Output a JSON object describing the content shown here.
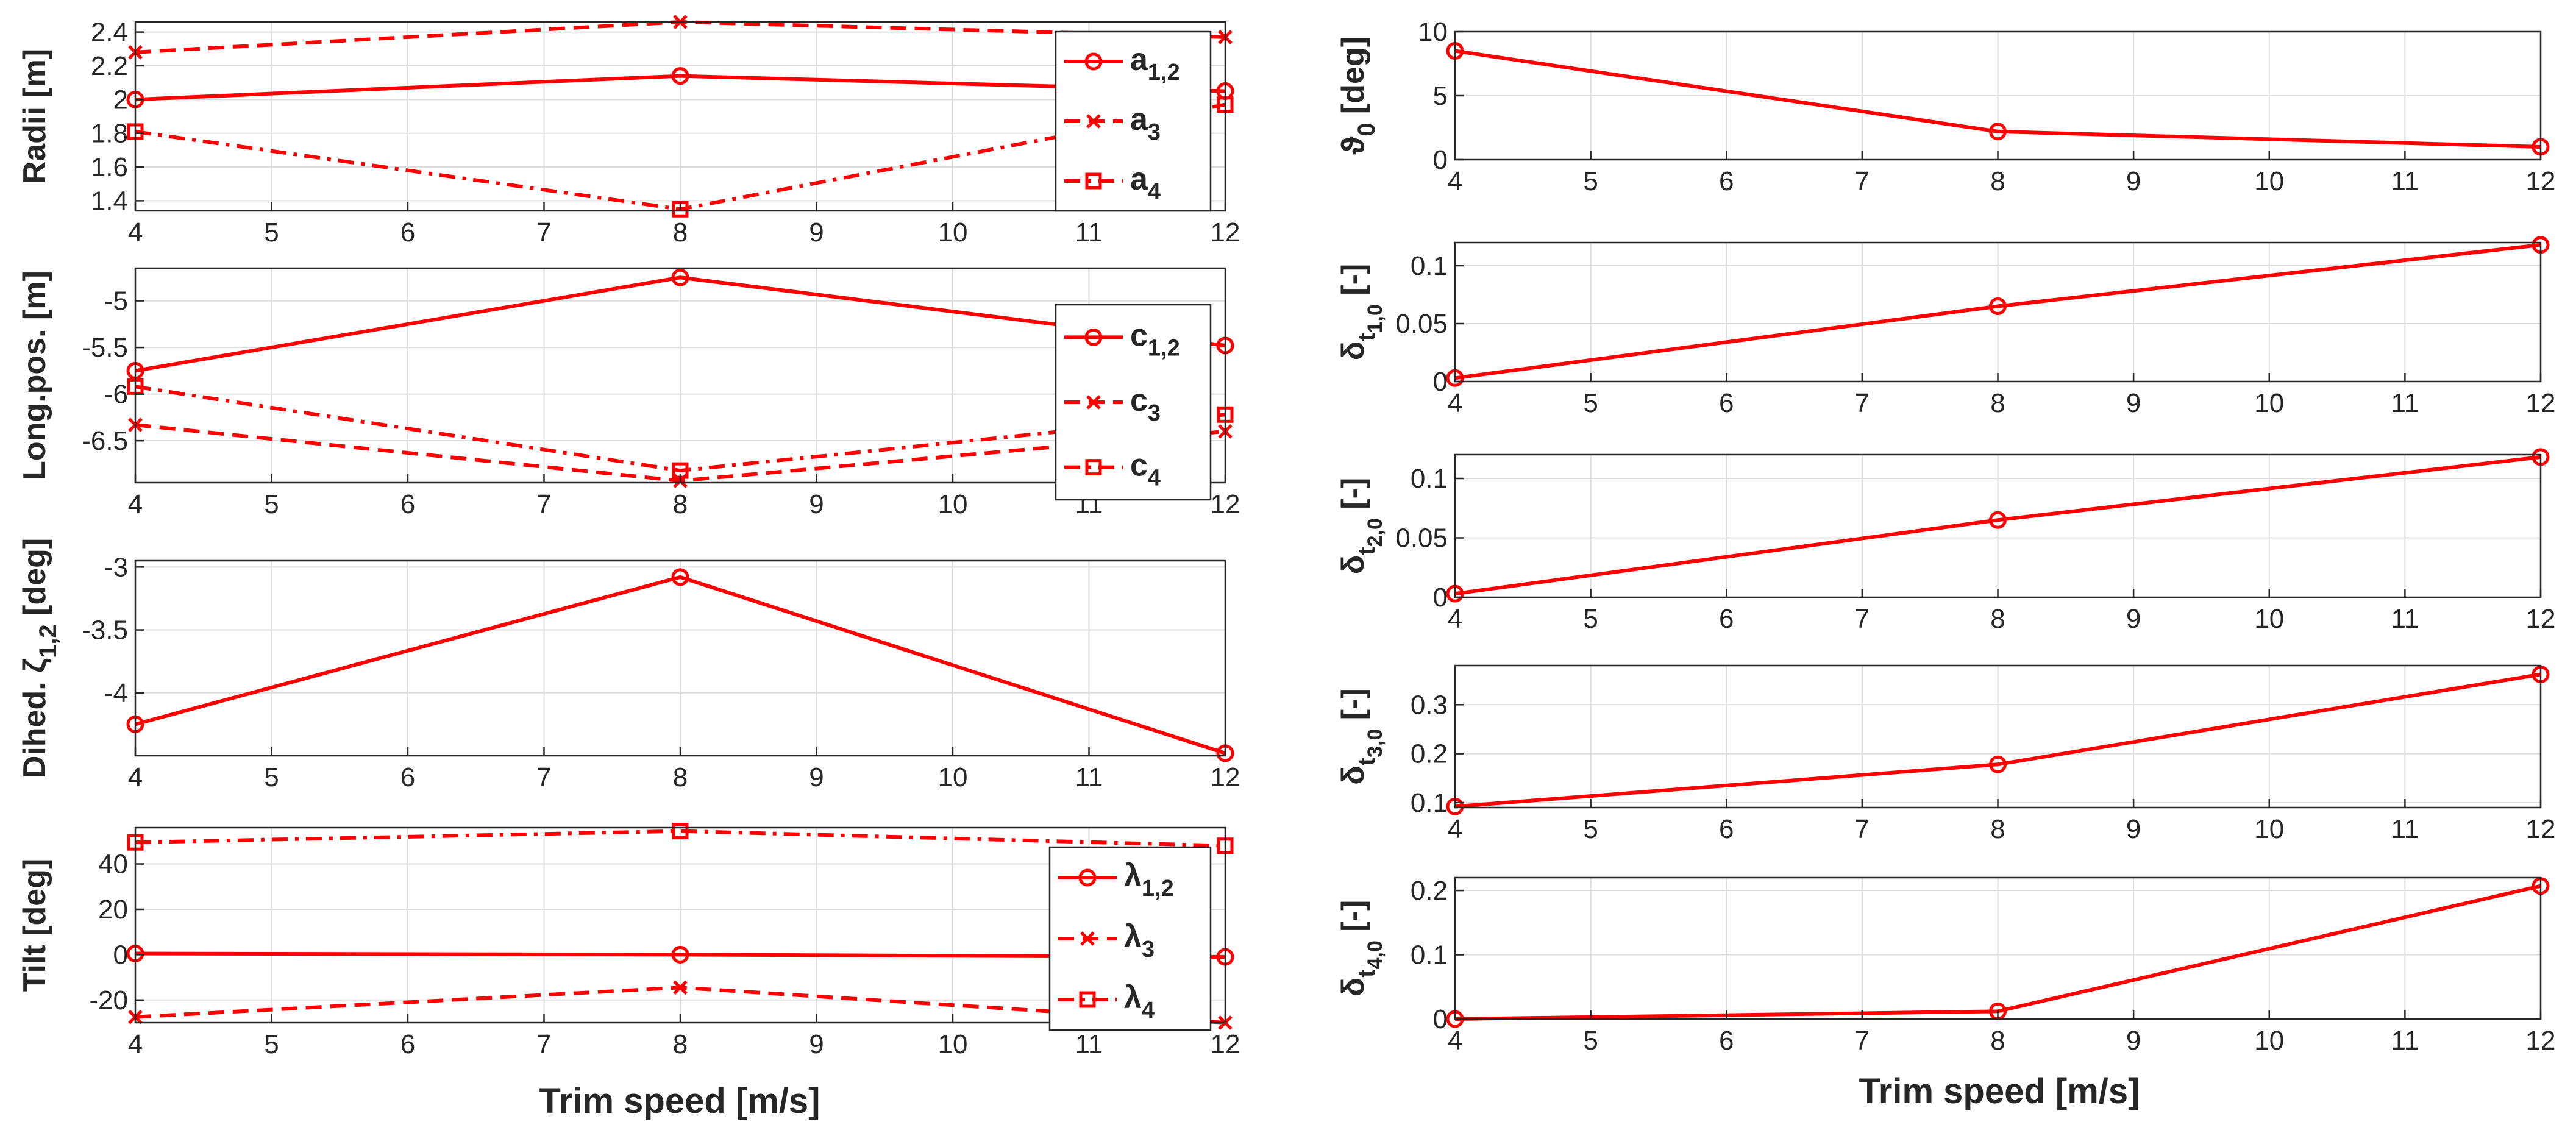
{
  "figure": {
    "xlabel": "Trim speed [m/s]",
    "line_color": "#ff0000"
  },
  "chart_data": [
    {
      "id": "radii",
      "type": "line",
      "ylabel": "Radii [m]",
      "x": [
        4,
        8,
        12
      ],
      "xlim": [
        4,
        12
      ],
      "xticks": [
        "4",
        "5",
        "6",
        "7",
        "8",
        "9",
        "10",
        "11",
        "12"
      ],
      "ylim": [
        1.34,
        2.46
      ],
      "yticks": [
        {
          "v": 1.4,
          "t": "1.4"
        },
        {
          "v": 1.6,
          "t": "1.6"
        },
        {
          "v": 1.8,
          "t": "1.8"
        },
        {
          "v": 2.0,
          "t": "2"
        },
        {
          "v": 2.2,
          "t": "2.2"
        },
        {
          "v": 2.4,
          "t": "2.4"
        }
      ],
      "legend": {
        "position": "right"
      },
      "series": [
        {
          "name": "a",
          "sub": "1,2",
          "marker": "circle",
          "dash": "solid",
          "values": [
            2.0,
            2.14,
            2.05
          ]
        },
        {
          "name": "a",
          "sub": "3",
          "marker": "x",
          "dash": "dashed",
          "values": [
            2.28,
            2.46,
            2.37
          ]
        },
        {
          "name": "a",
          "sub": "4",
          "marker": "square",
          "dash": "dashdot",
          "values": [
            1.81,
            1.35,
            1.97
          ]
        }
      ]
    },
    {
      "id": "longpos",
      "type": "line",
      "ylabel": "Long.pos. [m]",
      "x": [
        4,
        8,
        12
      ],
      "xlim": [
        4,
        12
      ],
      "xticks": [
        "4",
        "5",
        "6",
        "7",
        "8",
        "9",
        "10",
        "11",
        "12"
      ],
      "ylim": [
        -6.95,
        -4.65
      ],
      "yticks": [
        {
          "v": -6.5,
          "t": "-6.5"
        },
        {
          "v": -6.0,
          "t": "-6"
        },
        {
          "v": -5.5,
          "t": "-5.5"
        },
        {
          "v": -5.0,
          "t": "-5"
        }
      ],
      "legend": {
        "position": "right"
      },
      "series": [
        {
          "name": "c",
          "sub": "1,2",
          "marker": "circle",
          "dash": "solid",
          "values": [
            -5.75,
            -4.75,
            -5.48
          ]
        },
        {
          "name": "c",
          "sub": "3",
          "marker": "x",
          "dash": "dashed",
          "values": [
            -6.33,
            -6.93,
            -6.4
          ]
        },
        {
          "name": "c",
          "sub": "4",
          "marker": "square",
          "dash": "dashdot",
          "values": [
            -5.92,
            -6.82,
            -6.22
          ]
        }
      ]
    },
    {
      "id": "dihedral",
      "type": "line",
      "ylabel": "Dihed. ζ",
      "ylabel_sub": "1,2",
      "ylabel_suffix": " [deg]",
      "x": [
        4,
        8,
        12
      ],
      "xlim": [
        4,
        12
      ],
      "xticks": [
        "4",
        "5",
        "6",
        "7",
        "8",
        "9",
        "10",
        "11",
        "12"
      ],
      "ylim": [
        -4.5,
        -2.95
      ],
      "yticks": [
        {
          "v": -4.0,
          "t": "-4"
        },
        {
          "v": -3.5,
          "t": "-3.5"
        },
        {
          "v": -3.0,
          "t": "-3"
        }
      ],
      "series": [
        {
          "name": "ζ",
          "sub": "1,2",
          "marker": "circle",
          "dash": "solid",
          "values": [
            -4.25,
            -3.08,
            -4.48
          ]
        }
      ]
    },
    {
      "id": "tilt",
      "type": "line",
      "ylabel": "Tilt [deg]",
      "x": [
        4,
        8,
        12
      ],
      "xlim": [
        4,
        12
      ],
      "xticks": [
        "4",
        "5",
        "6",
        "7",
        "8",
        "9",
        "10",
        "11",
        "12"
      ],
      "ylim": [
        -30,
        56
      ],
      "yticks": [
        {
          "v": -20,
          "t": "-20"
        },
        {
          "v": 0,
          "t": "0"
        },
        {
          "v": 20,
          "t": "20"
        },
        {
          "v": 40,
          "t": "40"
        }
      ],
      "legend": {
        "position": "right"
      },
      "series": [
        {
          "name": "λ",
          "sub": "1,2",
          "marker": "circle",
          "dash": "solid",
          "values": [
            0.5,
            0,
            -1
          ]
        },
        {
          "name": "λ",
          "sub": "3",
          "marker": "x",
          "dash": "dashed",
          "values": [
            -27.5,
            -14.5,
            -30
          ]
        },
        {
          "name": "λ",
          "sub": "4",
          "marker": "square",
          "dash": "dashdot",
          "values": [
            49.5,
            54.5,
            48
          ]
        }
      ]
    },
    {
      "id": "theta0",
      "type": "line",
      "ylabel": "ϑ",
      "ylabel_sub": "0",
      "ylabel_suffix": " [deg]",
      "x": [
        4,
        8,
        12
      ],
      "xlim": [
        4,
        12
      ],
      "xticks": [
        "4",
        "5",
        "6",
        "7",
        "8",
        "9",
        "10",
        "11",
        "12"
      ],
      "ylim": [
        0,
        10
      ],
      "yticks": [
        {
          "v": 0,
          "t": "0"
        },
        {
          "v": 5,
          "t": "5"
        },
        {
          "v": 10,
          "t": "10"
        }
      ],
      "series": [
        {
          "name": "ϑ",
          "sub": "0",
          "marker": "circle",
          "dash": "solid",
          "values": [
            8.5,
            2.2,
            1.0
          ]
        }
      ]
    },
    {
      "id": "dt1",
      "type": "line",
      "ylabel": "δ",
      "ylabel_sub": "t",
      "ylabel_sub2": "1,0",
      "ylabel_suffix": " [-]",
      "x": [
        4,
        8,
        12
      ],
      "xlim": [
        4,
        12
      ],
      "xticks": [
        "4",
        "5",
        "6",
        "7",
        "8",
        "9",
        "10",
        "11",
        "12"
      ],
      "ylim": [
        0,
        0.12
      ],
      "yticks": [
        {
          "v": 0,
          "t": "0"
        },
        {
          "v": 0.05,
          "t": "0.05"
        },
        {
          "v": 0.1,
          "t": "0.1"
        }
      ],
      "series": [
        {
          "name": "δ",
          "sub": "t1,0",
          "marker": "circle",
          "dash": "solid",
          "values": [
            0.003,
            0.065,
            0.118
          ]
        }
      ]
    },
    {
      "id": "dt2",
      "type": "line",
      "ylabel": "δ",
      "ylabel_sub": "t",
      "ylabel_sub2": "2,0",
      "ylabel_suffix": " [-]",
      "x": [
        4,
        8,
        12
      ],
      "xlim": [
        4,
        12
      ],
      "xticks": [
        "4",
        "5",
        "6",
        "7",
        "8",
        "9",
        "10",
        "11",
        "12"
      ],
      "ylim": [
        0,
        0.12
      ],
      "yticks": [
        {
          "v": 0,
          "t": "0"
        },
        {
          "v": 0.05,
          "t": "0.05"
        },
        {
          "v": 0.1,
          "t": "0.1"
        }
      ],
      "series": [
        {
          "name": "δ",
          "sub": "t2,0",
          "marker": "circle",
          "dash": "solid",
          "values": [
            0.003,
            0.065,
            0.118
          ]
        }
      ]
    },
    {
      "id": "dt3",
      "type": "line",
      "ylabel": "δ",
      "ylabel_sub": "t",
      "ylabel_sub2": "3,0",
      "ylabel_suffix": " [-]",
      "x": [
        4,
        8,
        12
      ],
      "xlim": [
        4,
        12
      ],
      "xticks": [
        "4",
        "5",
        "6",
        "7",
        "8",
        "9",
        "10",
        "11",
        "12"
      ],
      "ylim": [
        0.09,
        0.38
      ],
      "yticks": [
        {
          "v": 0.1,
          "t": "0.1"
        },
        {
          "v": 0.2,
          "t": "0.2"
        },
        {
          "v": 0.3,
          "t": "0.3"
        }
      ],
      "series": [
        {
          "name": "δ",
          "sub": "t3,0",
          "marker": "circle",
          "dash": "solid",
          "values": [
            0.092,
            0.178,
            0.362
          ]
        }
      ]
    },
    {
      "id": "dt4",
      "type": "line",
      "ylabel": "δ",
      "ylabel_sub": "t",
      "ylabel_sub2": "4,0",
      "ylabel_suffix": " [-]",
      "x": [
        4,
        8,
        12
      ],
      "xlim": [
        4,
        12
      ],
      "xticks": [
        "4",
        "5",
        "6",
        "7",
        "8",
        "9",
        "10",
        "11",
        "12"
      ],
      "ylim": [
        0,
        0.22
      ],
      "yticks": [
        {
          "v": 0,
          "t": "0"
        },
        {
          "v": 0.1,
          "t": "0.1"
        },
        {
          "v": 0.2,
          "t": "0.2"
        }
      ],
      "series": [
        {
          "name": "δ",
          "sub": "t4,0",
          "marker": "circle",
          "dash": "solid",
          "values": [
            0.0,
            0.012,
            0.207
          ]
        }
      ]
    }
  ]
}
